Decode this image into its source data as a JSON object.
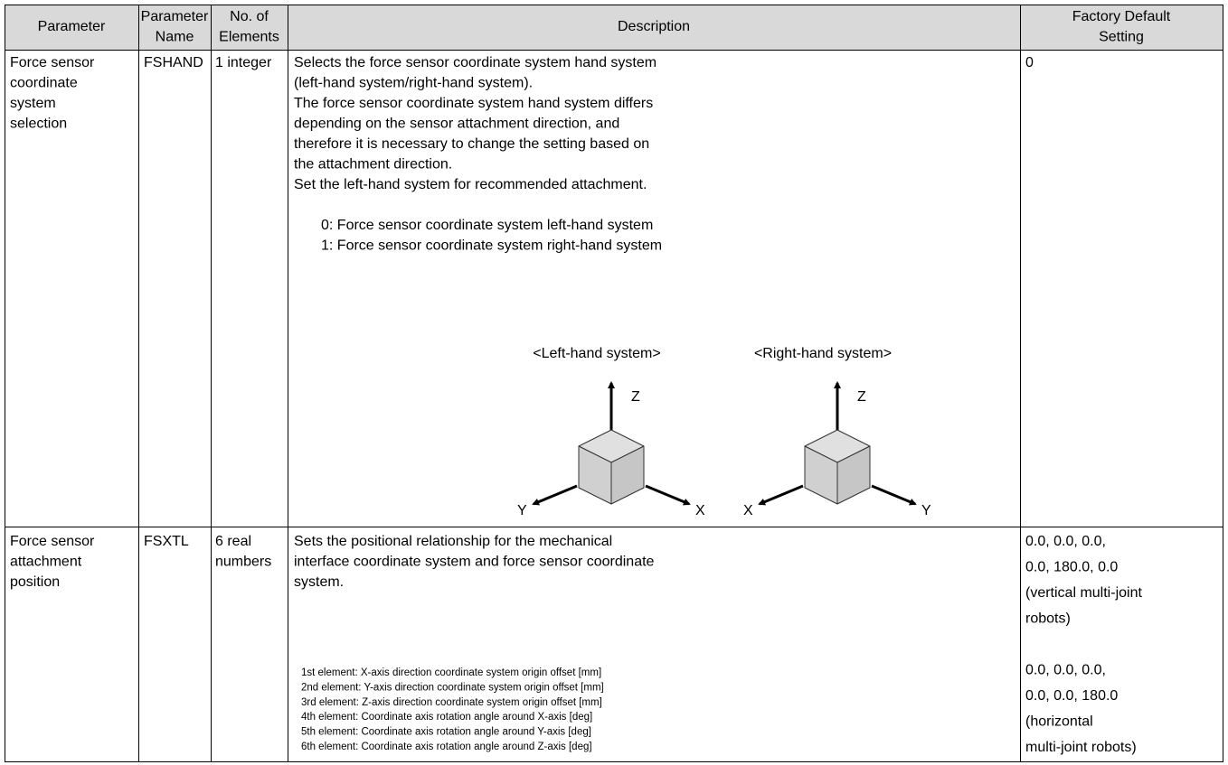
{
  "table": {
    "header": [
      [
        "Parameter"
      ],
      [
        "Parameter",
        "Name"
      ],
      [
        "No. of",
        "Elements"
      ],
      [
        "Description"
      ],
      [
        "Factory Default",
        "Setting"
      ]
    ],
    "rows": [
      {
        "parameter": [
          "Force sensor",
          "coordinate",
          "system",
          "selection"
        ],
        "name": [
          "FSHAND"
        ],
        "elements": [
          "1 integer"
        ],
        "description": [
          "Selects the force sensor coordinate system hand system",
          "(left-hand system/right-hand system).",
          "The force sensor coordinate system hand system differs",
          "depending on the sensor attachment direction, and",
          "therefore it is necessary to change the setting based on",
          "the attachment direction.",
          "Set the left-hand system for recommended attachment."
        ],
        "options": [
          "0: Force sensor coordinate system left-hand system",
          "1: Force sensor coordinate system right-hand system"
        ],
        "diagram": {
          "left": {
            "title": "<Left-hand system>",
            "z": "Z",
            "x": "X",
            "y": "Y"
          },
          "right": {
            "title": "<Right-hand system>",
            "z": "Z",
            "x": "X",
            "y": "Y"
          }
        },
        "default": [
          [
            "0"
          ]
        ]
      },
      {
        "parameter": [
          "Force sensor",
          "attachment",
          "position"
        ],
        "name": [
          "FSXTL"
        ],
        "elements": [
          "6 real",
          "numbers"
        ],
        "description": [
          "Sets the positional relationship for the mechanical",
          "interface coordinate system and force sensor coordinate",
          "system."
        ],
        "details": [
          "1st element: X-axis direction coordinate system origin offset [mm]",
          "2nd element: Y-axis direction coordinate system origin offset [mm]",
          "3rd element: Z-axis direction coordinate system origin offset [mm]",
          "4th element: Coordinate axis rotation angle around X-axis [deg]",
          "5th element: Coordinate axis rotation angle around Y-axis [deg]",
          "6th element: Coordinate axis rotation angle around Z-axis [deg]"
        ],
        "default": [
          [
            "0.0, 0.0, 0.0,",
            "0.0, 180.0, 0.0",
            "(vertical multi-joint",
            "robots)"
          ],
          [
            "0.0, 0.0, 0.0,",
            "0.0, 0.0, 180.0",
            "(horizontal",
            "multi-joint robots)"
          ]
        ]
      }
    ]
  }
}
